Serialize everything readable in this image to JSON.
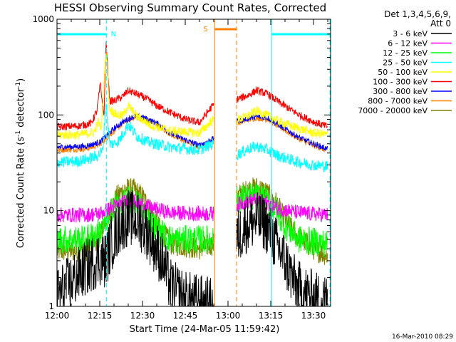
{
  "chart_data": {
    "type": "line",
    "title": "HESSI Observing Summary Count Rates, Corrected",
    "xlabel": "Start Time (24-Mar-05 11:59:42)",
    "ylabel": "Corrected Count Rate (s⁻¹ detector⁻¹)",
    "ylabel_main": "Corrected Count Rate (s",
    "ylabel_sup1": "-1",
    "ylabel_mid": " detector",
    "ylabel_sup2": "-1",
    "ylabel_end": ")",
    "yscale": "log",
    "ylim": [
      1,
      1000
    ],
    "xlim_minutes": [
      0,
      96
    ],
    "x_tick_minutes": [
      0,
      15,
      30,
      45,
      60,
      75,
      90
    ],
    "x_tick_labels": [
      "12:00",
      "12:15",
      "12:30",
      "12:45",
      "13:00",
      "13:15",
      "13:30"
    ],
    "y_ticks": [
      1,
      10,
      100,
      1000
    ],
    "y_tick_labels": [
      "1",
      "10",
      "100",
      "1000"
    ],
    "legend_header": [
      "Det 1,3,4,5,6,9,",
      "Att 0"
    ],
    "legend_placement": "right",
    "footer_date": "16-Mar-2010 08:29",
    "gap_minutes": [
      55,
      63
    ],
    "attenuator_markers": [
      {
        "minute": 17.4,
        "label": "N",
        "color": "#00ffff"
      },
      {
        "minute": 55.3,
        "label": "S",
        "color": "#ff8000"
      }
    ],
    "series": [
      {
        "name": "3 - 6 keV",
        "color": "#000000",
        "knots": [
          [
            0,
            1.3
          ],
          [
            5,
            1.8
          ],
          [
            10,
            2.5
          ],
          [
            15,
            3.2
          ],
          [
            17,
            3
          ],
          [
            19,
            4.5
          ],
          [
            22,
            7
          ],
          [
            25,
            8.5
          ],
          [
            28,
            8
          ],
          [
            31,
            6.5
          ],
          [
            34,
            4.5
          ],
          [
            37,
            3
          ],
          [
            40,
            1.6
          ],
          [
            45,
            1.2
          ],
          [
            55,
            1
          ],
          [
            63,
            5
          ],
          [
            66,
            7
          ],
          [
            70,
            8
          ],
          [
            73,
            7.5
          ],
          [
            76,
            5
          ],
          [
            80,
            3
          ],
          [
            84,
            1.6
          ],
          [
            90,
            1.2
          ],
          [
            95,
            1.1
          ]
        ],
        "noise": 0.3
      },
      {
        "name": "6 - 12 keV",
        "color": "#ff00ff",
        "knots": [
          [
            0,
            9
          ],
          [
            10,
            9
          ],
          [
            15,
            9.3
          ],
          [
            20,
            11
          ],
          [
            24,
            12.5
          ],
          [
            27,
            12.5
          ],
          [
            30,
            11.5
          ],
          [
            34,
            10.5
          ],
          [
            40,
            9.5
          ],
          [
            50,
            9.3
          ],
          [
            55,
            9.3
          ],
          [
            63,
            11.5
          ],
          [
            67,
            12.5
          ],
          [
            70,
            13
          ],
          [
            74,
            12
          ],
          [
            78,
            10.5
          ],
          [
            85,
            9.5
          ],
          [
            95,
            9
          ]
        ],
        "noise": 0.08
      },
      {
        "name": "12 - 25 keV",
        "color": "#00ff00",
        "knots": [
          [
            0,
            5
          ],
          [
            10,
            5
          ],
          [
            15,
            6
          ],
          [
            18,
            8
          ],
          [
            20,
            12
          ],
          [
            22,
            11
          ],
          [
            25,
            13
          ],
          [
            28,
            12
          ],
          [
            30,
            10.5
          ],
          [
            33,
            8
          ],
          [
            36,
            6
          ],
          [
            40,
            5
          ],
          [
            55,
            5
          ],
          [
            63,
            13
          ],
          [
            67,
            14
          ],
          [
            70,
            14
          ],
          [
            73,
            13
          ],
          [
            77,
            10
          ],
          [
            80,
            7
          ],
          [
            85,
            5
          ],
          [
            95,
            4.5
          ]
        ],
        "noise": 0.15
      },
      {
        "name": "25 - 50 keV",
        "color": "#00ffff",
        "knots": [
          [
            0,
            32
          ],
          [
            8,
            33
          ],
          [
            14,
            37
          ],
          [
            16,
            42
          ],
          [
            17.2,
            135
          ],
          [
            18.5,
            50
          ],
          [
            20,
            50
          ],
          [
            22,
            55
          ],
          [
            25,
            80
          ],
          [
            28,
            60
          ],
          [
            32,
            52
          ],
          [
            40,
            46
          ],
          [
            50,
            43
          ],
          [
            54.6,
            50
          ],
          [
            63,
            38
          ],
          [
            67,
            44
          ],
          [
            70,
            47
          ],
          [
            74,
            43
          ],
          [
            78,
            37
          ],
          [
            85,
            32
          ],
          [
            90,
            30
          ],
          [
            95,
            29
          ]
        ],
        "noise": 0.06
      },
      {
        "name": "50 - 100 keV",
        "color": "#ffff00",
        "knots": [
          [
            0,
            62
          ],
          [
            8,
            62
          ],
          [
            13,
            66
          ],
          [
            14.5,
            85
          ],
          [
            15.5,
            72
          ],
          [
            17.2,
            480
          ],
          [
            18.5,
            115
          ],
          [
            21,
            100
          ],
          [
            23,
            98
          ],
          [
            25,
            125
          ],
          [
            28,
            97
          ],
          [
            33,
            78
          ],
          [
            40,
            68
          ],
          [
            50,
            65
          ],
          [
            54.6,
            88
          ],
          [
            63,
            88
          ],
          [
            67,
            98
          ],
          [
            70,
            110
          ],
          [
            74,
            98
          ],
          [
            78,
            85
          ],
          [
            85,
            72
          ],
          [
            90,
            65
          ],
          [
            95,
            62
          ]
        ],
        "noise": 0.05
      },
      {
        "name": "100 - 300 keV",
        "color": "#ff0000",
        "knots": [
          [
            0,
            75
          ],
          [
            8,
            77
          ],
          [
            12,
            82
          ],
          [
            14,
            110
          ],
          [
            15.2,
            210
          ],
          [
            16.5,
            95
          ],
          [
            17.2,
            590
          ],
          [
            18.5,
            140
          ],
          [
            20,
            140
          ],
          [
            23,
            155
          ],
          [
            25,
            180
          ],
          [
            28,
            165
          ],
          [
            31,
            150
          ],
          [
            35,
            125
          ],
          [
            40,
            105
          ],
          [
            45,
            90
          ],
          [
            50,
            83
          ],
          [
            54.6,
            125
          ],
          [
            63,
            145
          ],
          [
            67,
            160
          ],
          [
            70,
            180
          ],
          [
            74,
            165
          ],
          [
            78,
            135
          ],
          [
            85,
            100
          ],
          [
            90,
            85
          ],
          [
            95,
            75
          ]
        ],
        "noise": 0.04
      },
      {
        "name": "300 - 800 keV",
        "color": "#0000ff",
        "knots": [
          [
            0,
            46
          ],
          [
            10,
            47
          ],
          [
            15,
            52
          ],
          [
            20,
            72
          ],
          [
            24,
            88
          ],
          [
            27,
            97
          ],
          [
            30,
            95
          ],
          [
            35,
            82
          ],
          [
            40,
            64
          ],
          [
            45,
            55
          ],
          [
            50,
            48
          ],
          [
            54.6,
            56
          ],
          [
            63,
            85
          ],
          [
            67,
            92
          ],
          [
            70,
            96
          ],
          [
            74,
            93
          ],
          [
            78,
            78
          ],
          [
            85,
            58
          ],
          [
            90,
            50
          ],
          [
            95,
            44
          ]
        ],
        "noise": 0.03
      },
      {
        "name": "800 - 7000 keV",
        "color": "#ff8000",
        "knots": [
          [
            0,
            43
          ],
          [
            10,
            44
          ],
          [
            15,
            49
          ],
          [
            20,
            68
          ],
          [
            24,
            85
          ],
          [
            27,
            94
          ],
          [
            30,
            92
          ],
          [
            35,
            80
          ],
          [
            40,
            62
          ],
          [
            45,
            53
          ],
          [
            50,
            46
          ],
          [
            54.6,
            54
          ],
          [
            63,
            82
          ],
          [
            67,
            89
          ],
          [
            70,
            93
          ],
          [
            74,
            90
          ],
          [
            78,
            75
          ],
          [
            85,
            56
          ],
          [
            90,
            48
          ],
          [
            95,
            42
          ]
        ],
        "noise": 0.03
      },
      {
        "name": "7000 - 20000 keV",
        "color": "#808000",
        "knots": [
          [
            0,
            3.8
          ],
          [
            10,
            3.8
          ],
          [
            15,
            5.5
          ],
          [
            18,
            9
          ],
          [
            21,
            14
          ],
          [
            24,
            17
          ],
          [
            27,
            16.5
          ],
          [
            30,
            14
          ],
          [
            33,
            10
          ],
          [
            36,
            6.5
          ],
          [
            40,
            4.5
          ],
          [
            50,
            4
          ],
          [
            55,
            4.5
          ],
          [
            63,
            14
          ],
          [
            67,
            16.5
          ],
          [
            70,
            17.5
          ],
          [
            73,
            16
          ],
          [
            77,
            12
          ],
          [
            80,
            8
          ],
          [
            84,
            5.5
          ],
          [
            90,
            4
          ],
          [
            95,
            3.4
          ]
        ],
        "noise": 0.12
      }
    ]
  }
}
